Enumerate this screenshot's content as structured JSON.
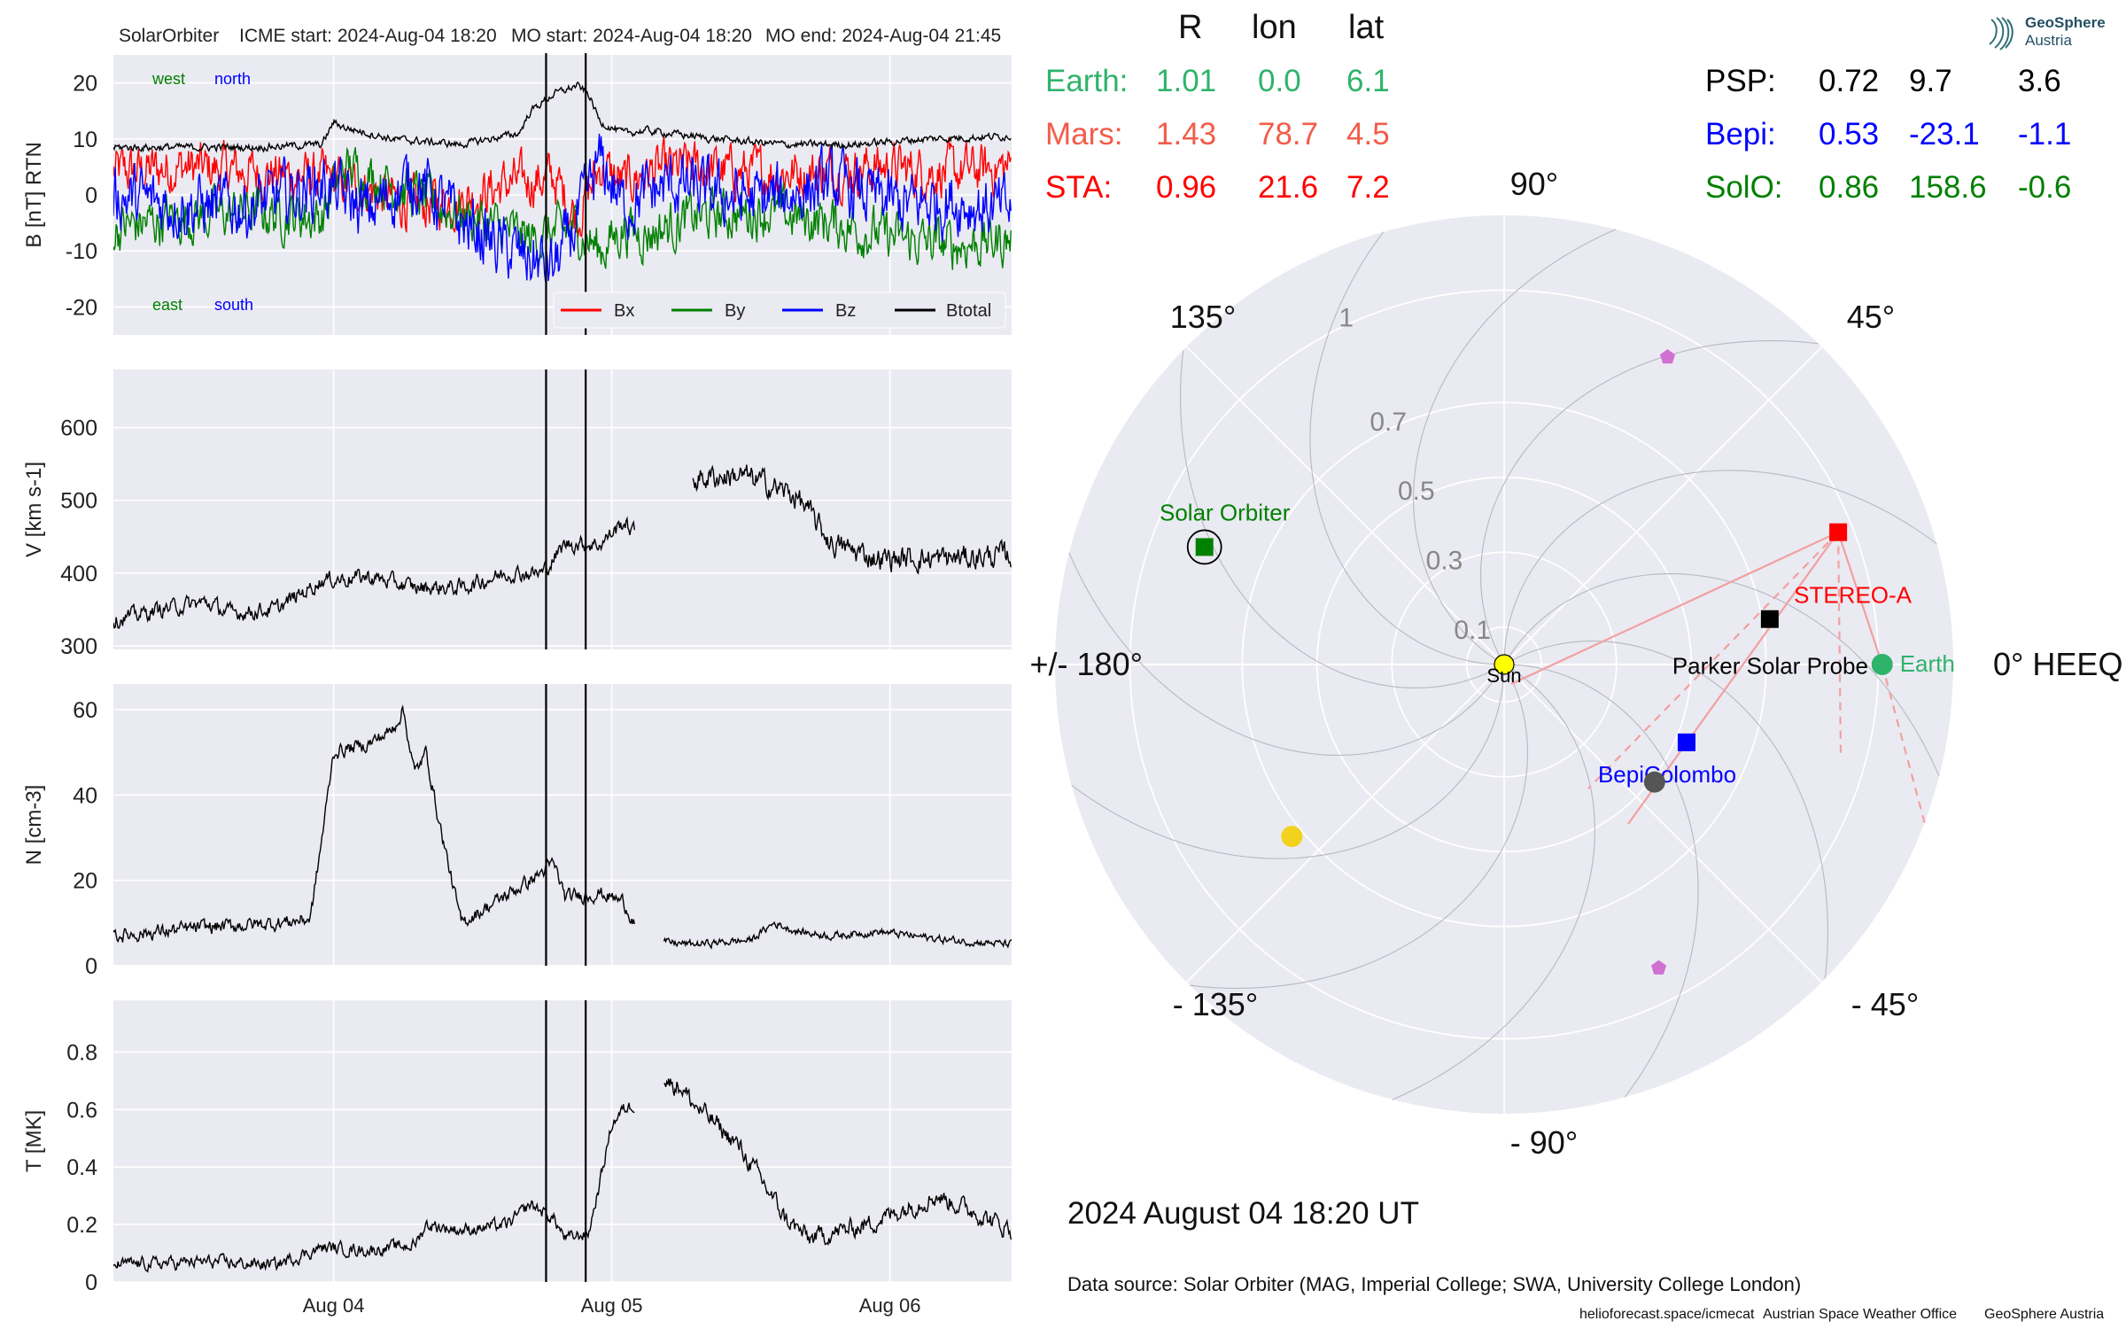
{
  "header": {
    "spacecraft": "SolarOrbiter",
    "icme_start": "ICME start: 2024-Aug-04 18:20",
    "mo_start": "MO start: 2024-Aug-04 18:20",
    "mo_end": "MO end: 2024-Aug-04 21:45"
  },
  "table": {
    "columns": [
      "R",
      "lon",
      "lat"
    ],
    "left_rows": [
      {
        "name": "Earth:",
        "R": "1.01",
        "lon": "0.0",
        "lat": "6.1",
        "color": "#2fb36b"
      },
      {
        "name": "Mars:",
        "R": "1.43",
        "lon": "78.7",
        "lat": "4.5",
        "color": "#f25c4a"
      },
      {
        "name": "STA:",
        "R": "0.96",
        "lon": "21.6",
        "lat": "7.2",
        "color": "#ff0000"
      }
    ],
    "right_rows": [
      {
        "name": "PSP:",
        "R": "0.72",
        "lon": "9.7",
        "lat": "3.6",
        "color": "#000000"
      },
      {
        "name": "Bepi:",
        "R": "0.53",
        "lon": "-23.1",
        "lat": "-1.1",
        "color": "#0000ff"
      },
      {
        "name": "SolO:",
        "R": "0.86",
        "lon": "158.6",
        "lat": "-0.6",
        "color": "#008000"
      }
    ]
  },
  "logo": {
    "line1": "GeoSphere",
    "line2": "Austria"
  },
  "date_label": "2024 August 04  18:20 UT",
  "footer": {
    "source": "Data source: Solar Orbiter (MAG, Imperial College; SWA, University College London)",
    "credit1": "helioforecast.space/icmecat",
    "credit2": "Austrian Space Weather Office",
    "credit3": "GeoSphere Austria"
  },
  "chart_data": [
    {
      "type": "line",
      "panel": "magnetic field",
      "ylabel": "B [nT] RTN",
      "ylim": [
        -25,
        25
      ],
      "yticks": [
        -20,
        -10,
        0,
        10,
        20
      ],
      "x_time_range": [
        "2024-08-03 05:00",
        "2024-08-06 10:30"
      ],
      "xticks": [
        {
          "label": "Aug 04",
          "t": "2024-08-04 00:00"
        },
        {
          "label": "Aug 05",
          "t": "2024-08-05 00:00"
        },
        {
          "label": "Aug 06",
          "t": "2024-08-06 00:00"
        }
      ],
      "event_lines": [
        "2024-08-04 18:20",
        "2024-08-04 21:45"
      ],
      "annotations": {
        "top_left_1": "west",
        "top_left_2": "north",
        "bottom_left_1": "east",
        "bottom_left_2": "south"
      },
      "legend_position": "lower right",
      "series": [
        {
          "name": "Bx",
          "color": "#ff0000",
          "anchors": [
            [
              0,
              4
            ],
            [
              6,
              5
            ],
            [
              12,
              4
            ],
            [
              18,
              3
            ],
            [
              22,
              1
            ],
            [
              26,
              -2
            ],
            [
              30,
              -1
            ],
            [
              34,
              2
            ],
            [
              38,
              3
            ],
            [
              40,
              -4
            ],
            [
              42,
              5
            ],
            [
              44,
              2
            ],
            [
              46,
              4
            ],
            [
              50,
              5
            ],
            [
              54,
              4
            ],
            [
              60,
              4
            ],
            [
              66,
              5
            ],
            [
              72,
              4
            ],
            [
              77.5,
              5
            ]
          ],
          "noise": 4
        },
        {
          "name": "By",
          "color": "#008000",
          "anchors": [
            [
              0,
              -6
            ],
            [
              6,
              -4
            ],
            [
              12,
              -3
            ],
            [
              18,
              -4
            ],
            [
              20,
              5
            ],
            [
              24,
              2
            ],
            [
              28,
              -2
            ],
            [
              32,
              -5
            ],
            [
              36,
              -8
            ],
            [
              40,
              -6
            ],
            [
              42,
              -10
            ],
            [
              44,
              -6
            ],
            [
              46,
              -7
            ],
            [
              50,
              -4
            ],
            [
              56,
              -3
            ],
            [
              62,
              -5
            ],
            [
              68,
              -8
            ],
            [
              72,
              -9
            ],
            [
              77.5,
              -8
            ]
          ],
          "noise": 4
        },
        {
          "name": "Bz",
          "color": "#0000ff",
          "anchors": [
            [
              0,
              0
            ],
            [
              6,
              -2
            ],
            [
              12,
              -2
            ],
            [
              18,
              2
            ],
            [
              22,
              -3
            ],
            [
              26,
              3
            ],
            [
              30,
              -5
            ],
            [
              34,
              -10
            ],
            [
              38,
              -13
            ],
            [
              40,
              -5
            ],
            [
              42,
              6
            ],
            [
              44,
              -2
            ],
            [
              48,
              2
            ],
            [
              52,
              0
            ],
            [
              56,
              -1
            ],
            [
              62,
              2
            ],
            [
              68,
              -2
            ],
            [
              72,
              -1
            ],
            [
              77.5,
              -3
            ]
          ],
          "noise": 5
        },
        {
          "name": "Btotal",
          "color": "#000000",
          "anchors": [
            [
              0,
              8.5
            ],
            [
              6,
              8.5
            ],
            [
              12,
              8.5
            ],
            [
              18,
              9
            ],
            [
              19,
              13
            ],
            [
              20,
              12
            ],
            [
              24,
              10
            ],
            [
              30,
              9
            ],
            [
              35,
              11
            ],
            [
              36,
              15
            ],
            [
              38,
              18
            ],
            [
              40,
              19.5
            ],
            [
              41,
              18
            ],
            [
              42,
              13
            ],
            [
              44,
              11
            ],
            [
              46,
              11.5
            ],
            [
              52,
              10
            ],
            [
              58,
              9
            ],
            [
              64,
              9
            ],
            [
              70,
              10
            ],
            [
              77.5,
              10.5
            ]
          ],
          "noise": 0.6
        }
      ]
    },
    {
      "type": "line",
      "panel": "velocity",
      "ylabel": "V [km s-1]",
      "ylim": [
        295,
        680
      ],
      "yticks": [
        300,
        400,
        500,
        600
      ],
      "event_lines": [
        "2024-08-04 18:20",
        "2024-08-04 21:45"
      ],
      "series": [
        {
          "name": "",
          "color": "#000000",
          "segments": [
            {
              "anchors": [
                [
                  0,
                  335
                ],
                [
                  4,
                  350
                ],
                [
                  8,
                  360
                ],
                [
                  10,
                  345
                ],
                [
                  14,
                  350
                ],
                [
                  18,
                  390
                ],
                [
                  22,
                  395
                ],
                [
                  26,
                  380
                ],
                [
                  30,
                  380
                ],
                [
                  34,
                  400
                ],
                [
                  37,
                  400
                ],
                [
                  39,
                  440
                ],
                [
                  42,
                  440
                ],
                [
                  44,
                  470
                ],
                [
                  45,
                  455
                ]
              ],
              "noise": 10
            },
            {
              "anchors": [
                [
                  50,
                  530
                ],
                [
                  54,
                  535
                ],
                [
                  56,
                  525
                ],
                [
                  59,
                  505
                ],
                [
                  62,
                  440
                ],
                [
                  66,
                  420
                ],
                [
                  72,
                  420
                ],
                [
                  77.5,
                  425
                ]
              ],
              "noise": 15
            }
          ]
        }
      ]
    },
    {
      "type": "line",
      "panel": "density",
      "ylabel": "N [cm-3]",
      "ylim": [
        0,
        66
      ],
      "yticks": [
        0,
        20,
        40,
        60
      ],
      "event_lines": [
        "2024-08-04 18:20",
        "2024-08-04 21:45"
      ],
      "series": [
        {
          "name": "",
          "color": "#000000",
          "segments": [
            {
              "anchors": [
                [
                  0,
                  7
                ],
                [
                  8,
                  9
                ],
                [
                  14,
                  10
                ],
                [
                  17,
                  11
                ],
                [
                  18,
                  30
                ],
                [
                  19,
                  50
                ],
                [
                  22,
                  52
                ],
                [
                  24,
                  55
                ],
                [
                  25,
                  60
                ],
                [
                  26,
                  45
                ],
                [
                  27,
                  50
                ],
                [
                  28,
                  35
                ],
                [
                  30,
                  10
                ],
                [
                  33,
                  15
                ],
                [
                  36,
                  20
                ],
                [
                  38,
                  24
                ],
                [
                  39,
                  16
                ],
                [
                  42,
                  17
                ],
                [
                  44,
                  15
                ],
                [
                  45,
                  10
                ]
              ],
              "noise": 1.5
            },
            {
              "anchors": [
                [
                  47.5,
                  5.5
                ],
                [
                  50,
                  5
                ],
                [
                  55,
                  6
                ],
                [
                  57,
                  10
                ],
                [
                  59,
                  8
                ],
                [
                  62,
                  7
                ],
                [
                  66,
                  8
                ],
                [
                  72,
                  6
                ],
                [
                  77.5,
                  5
                ]
              ],
              "noise": 0.8
            }
          ]
        }
      ]
    },
    {
      "type": "line",
      "panel": "temperature",
      "ylabel": "T [MK]",
      "ylim": [
        0,
        0.98
      ],
      "yticks": [
        0.0,
        0.2,
        0.4,
        0.6,
        0.8
      ],
      "event_lines": [
        "2024-08-04 18:20",
        "2024-08-04 21:45"
      ],
      "series": [
        {
          "name": "",
          "color": "#000000",
          "segments": [
            {
              "anchors": [
                [
                  0,
                  0.06
                ],
                [
                  8,
                  0.07
                ],
                [
                  14,
                  0.06
                ],
                [
                  18,
                  0.12
                ],
                [
                  22,
                  0.11
                ],
                [
                  26,
                  0.13
                ],
                [
                  27,
                  0.2
                ],
                [
                  30,
                  0.18
                ],
                [
                  34,
                  0.2
                ],
                [
                  36,
                  0.27
                ],
                [
                  38,
                  0.22
                ],
                [
                  39,
                  0.15
                ],
                [
                  41,
                  0.17
                ],
                [
                  42,
                  0.35
                ],
                [
                  43,
                  0.55
                ],
                [
                  44,
                  0.6
                ],
                [
                  45,
                  0.62
                ]
              ],
              "noise": 0.02
            },
            {
              "anchors": [
                [
                  47.5,
                  0.7
                ],
                [
                  49,
                  0.68
                ],
                [
                  50,
                  0.62
                ],
                [
                  52,
                  0.55
                ],
                [
                  54,
                  0.47
                ],
                [
                  56,
                  0.35
                ],
                [
                  58,
                  0.22
                ],
                [
                  60,
                  0.15
                ],
                [
                  62,
                  0.17
                ],
                [
                  65,
                  0.2
                ],
                [
                  68,
                  0.25
                ],
                [
                  71,
                  0.3
                ],
                [
                  74,
                  0.25
                ],
                [
                  77.5,
                  0.18
                ]
              ],
              "noise": 0.03
            }
          ]
        }
      ]
    },
    {
      "type": "scatter",
      "panel": "polar position plot",
      "r_ticks": [
        0.1,
        0.3,
        0.5,
        0.7,
        1.0
      ],
      "r_max": 1.2,
      "angle_labels": [
        "0° HEEQ",
        "45°",
        "90°",
        "135°",
        "+/- 180°",
        "- 135°",
        "- 90°",
        "- 45°"
      ],
      "objects": [
        {
          "name": "Sun",
          "r": 0.0,
          "lon": 0,
          "color": "#ffff00",
          "marker": "circle"
        },
        {
          "name": "Earth",
          "r": 1.01,
          "lon": 0.0,
          "color": "#2fb36b",
          "marker": "circle"
        },
        {
          "name": "STEREO-A",
          "r": 0.96,
          "lon": 21.6,
          "color": "#ff0000",
          "marker": "square"
        },
        {
          "name": "Parker Solar Probe",
          "r": 0.72,
          "lon": 9.7,
          "color": "#000000",
          "marker": "square"
        },
        {
          "name": "BepiColombo",
          "r": 0.53,
          "lon": -23.1,
          "color": "#0000ff",
          "marker": "square"
        },
        {
          "name": "Solar Orbiter",
          "r": 0.86,
          "lon": 158.6,
          "color": "#008000",
          "marker": "square"
        },
        {
          "name": "",
          "r": 0.51,
          "lon": -38,
          "color": "#555555",
          "marker": "circle"
        },
        {
          "name": "",
          "r": 0.73,
          "lon": -141,
          "color": "#f2d21d",
          "marker": "circle"
        },
        {
          "name": "",
          "r": 0.93,
          "lon": 62,
          "color": "#d070d0",
          "marker": "pentagon"
        },
        {
          "name": "",
          "r": 0.91,
          "lon": -63,
          "color": "#d070d0",
          "marker": "pentagon"
        }
      ]
    }
  ]
}
